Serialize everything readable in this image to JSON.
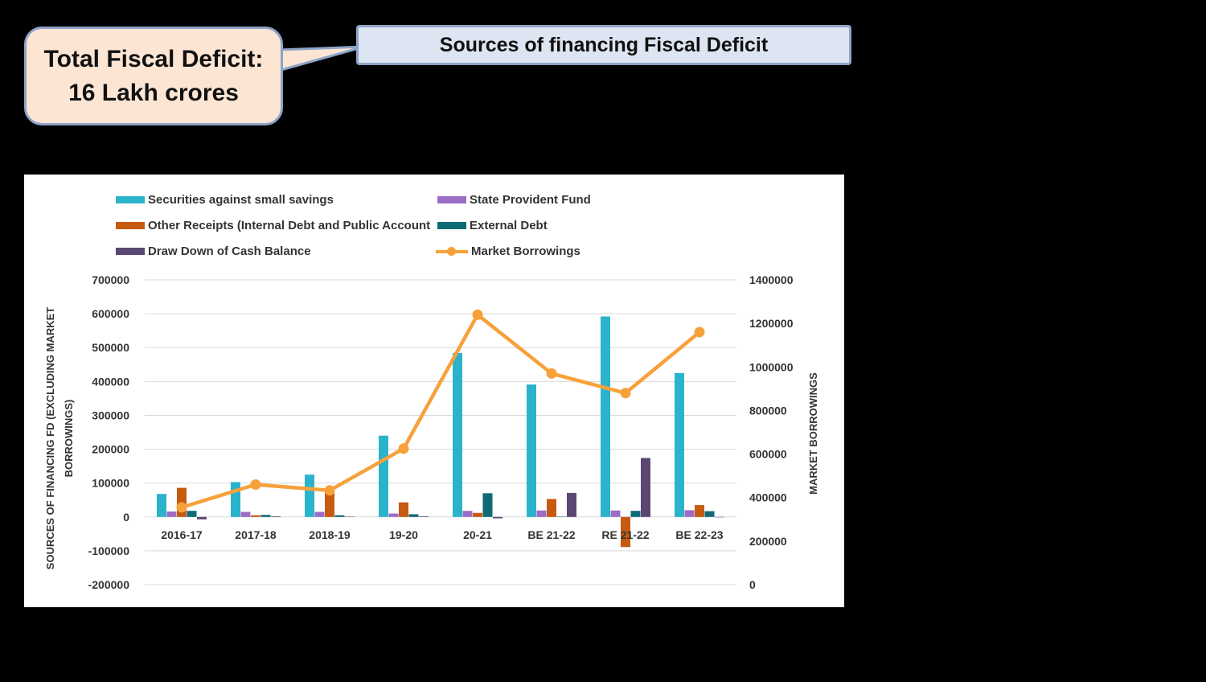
{
  "callout": {
    "line1": "Total Fiscal Deficit:",
    "line2": "16 Lakh crores"
  },
  "header": {
    "title": "Sources of financing Fiscal Deficit"
  },
  "colors": {
    "small_savings": "#2bb3cb",
    "state_pf": "#9d6cc7",
    "other_receipts": "#c65a11",
    "external_debt": "#0e6b75",
    "cash_balance": "#5a4772",
    "market_borrowings": "#f7a13b"
  },
  "chart_data": {
    "type": "bar",
    "categories": [
      "2016-17",
      "2017-18",
      "2018-19",
      "19-20",
      "20-21",
      "BE 21-22",
      "RE 21-22",
      "BE 22-23"
    ],
    "series": [
      {
        "name": "Securities against small savings",
        "key": "small_savings",
        "axis": "left",
        "values": [
          68000,
          103000,
          125000,
          240000,
          484000,
          391000,
          592000,
          425000
        ]
      },
      {
        "name": "State Provident Fund",
        "key": "state_pf",
        "axis": "left",
        "values": [
          16000,
          15000,
          15000,
          10000,
          18000,
          19000,
          19000,
          20000
        ]
      },
      {
        "name": "Other Receipts (Internal Debt and Public Account",
        "key": "other_receipts",
        "axis": "left",
        "values": [
          86000,
          5000,
          72000,
          43000,
          12000,
          53000,
          -89000,
          35000
        ]
      },
      {
        "name": "External Debt",
        "key": "external_debt",
        "axis": "left",
        "values": [
          18000,
          6000,
          5000,
          8000,
          70000,
          1000,
          18000,
          17000
        ]
      },
      {
        "name": "Draw Down of Cash Balance",
        "key": "cash_balance",
        "axis": "left",
        "values": [
          -7000,
          2000,
          1000,
          2000,
          -4000,
          71000,
          174000,
          0
        ]
      },
      {
        "name": "Market Borrowings",
        "key": "market_borrowings",
        "axis": "right",
        "type": "line",
        "values": [
          355000,
          460000,
          433000,
          625000,
          1240000,
          970000,
          880000,
          1160000
        ]
      }
    ],
    "ylabel": "SOURCES OF  FINANCING FD (EXCLUDING MARKET BORROWINGS)",
    "y2label": "MARKET BORROWINGS",
    "ylim": [
      -200000,
      700000
    ],
    "y2lim": [
      0,
      1400000
    ],
    "yticks": [
      "700000",
      "600000",
      "500000",
      "400000",
      "300000",
      "200000",
      "100000",
      "0",
      "-100000",
      "-200000"
    ],
    "y2ticks": [
      "1400000",
      "1200000",
      "1000000",
      "800000",
      "600000",
      "400000",
      "200000",
      "0"
    ],
    "grid": true,
    "legend_position": "top"
  }
}
